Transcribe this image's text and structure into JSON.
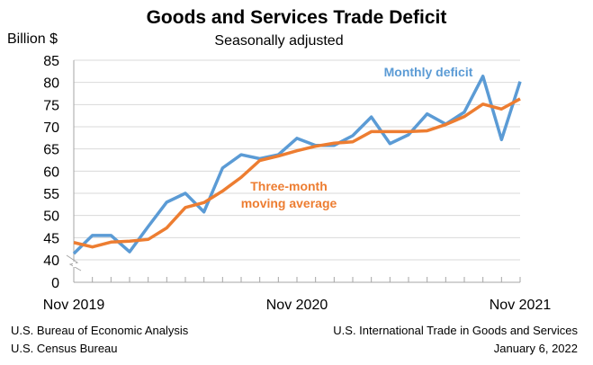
{
  "chart_data": {
    "type": "line",
    "title": "Goods and Services Trade Deficit",
    "subtitle": "Seasonally adjusted",
    "ylabel": "Billion $",
    "xlabel": "",
    "ylim": [
      0,
      85
    ],
    "y_axis_break": [
      0,
      40
    ],
    "yticks": [
      "0",
      "40",
      "45",
      "50",
      "55",
      "60",
      "65",
      "70",
      "75",
      "80",
      "85"
    ],
    "xtick_labels": [
      "Nov 2019",
      "Nov 2020",
      "Nov 2021"
    ],
    "x": [
      "Nov 2019",
      "Dec 2019",
      "Jan 2020",
      "Feb 2020",
      "Mar 2020",
      "Apr 2020",
      "May 2020",
      "Jun 2020",
      "Jul 2020",
      "Aug 2020",
      "Sep 2020",
      "Oct 2020",
      "Nov 2020",
      "Dec 2020",
      "Jan 2021",
      "Feb 2021",
      "Mar 2021",
      "Apr 2021",
      "May 2021",
      "Jun 2021",
      "Jul 2021",
      "Aug 2021",
      "Sep 2021",
      "Oct 2021",
      "Nov 2021"
    ],
    "grid": true,
    "series": [
      {
        "name": "Monthly deficit",
        "color": "#5b9bd5",
        "values": [
          41.4,
          45.5,
          45.5,
          41.8,
          47.5,
          53.0,
          55.0,
          50.8,
          60.7,
          63.7,
          62.8,
          63.7,
          67.4,
          65.8,
          65.8,
          68.0,
          72.2,
          66.2,
          68.2,
          72.9,
          70.6,
          73.3,
          81.4,
          67.1,
          80.2
        ]
      },
      {
        "name": "Three-month moving average",
        "color": "#ed7d31",
        "values": [
          43.9,
          42.9,
          44.0,
          44.2,
          44.6,
          47.2,
          51.8,
          52.9,
          55.5,
          58.6,
          62.4,
          63.4,
          64.6,
          65.6,
          66.3,
          66.6,
          68.9,
          68.9,
          68.9,
          69.1,
          70.5,
          72.3,
          75.1,
          74.0,
          76.3
        ]
      }
    ],
    "annotations": {
      "monthly": "Monthly deficit",
      "avg_line1": "Three-month",
      "avg_line2": "moving average"
    }
  },
  "footer": {
    "left1": "U.S. Bureau of Economic Analysis",
    "left2": "U.S. Census Bureau",
    "right1": "U.S. International Trade in Goods and Services",
    "right2": "January 6, 2022"
  }
}
